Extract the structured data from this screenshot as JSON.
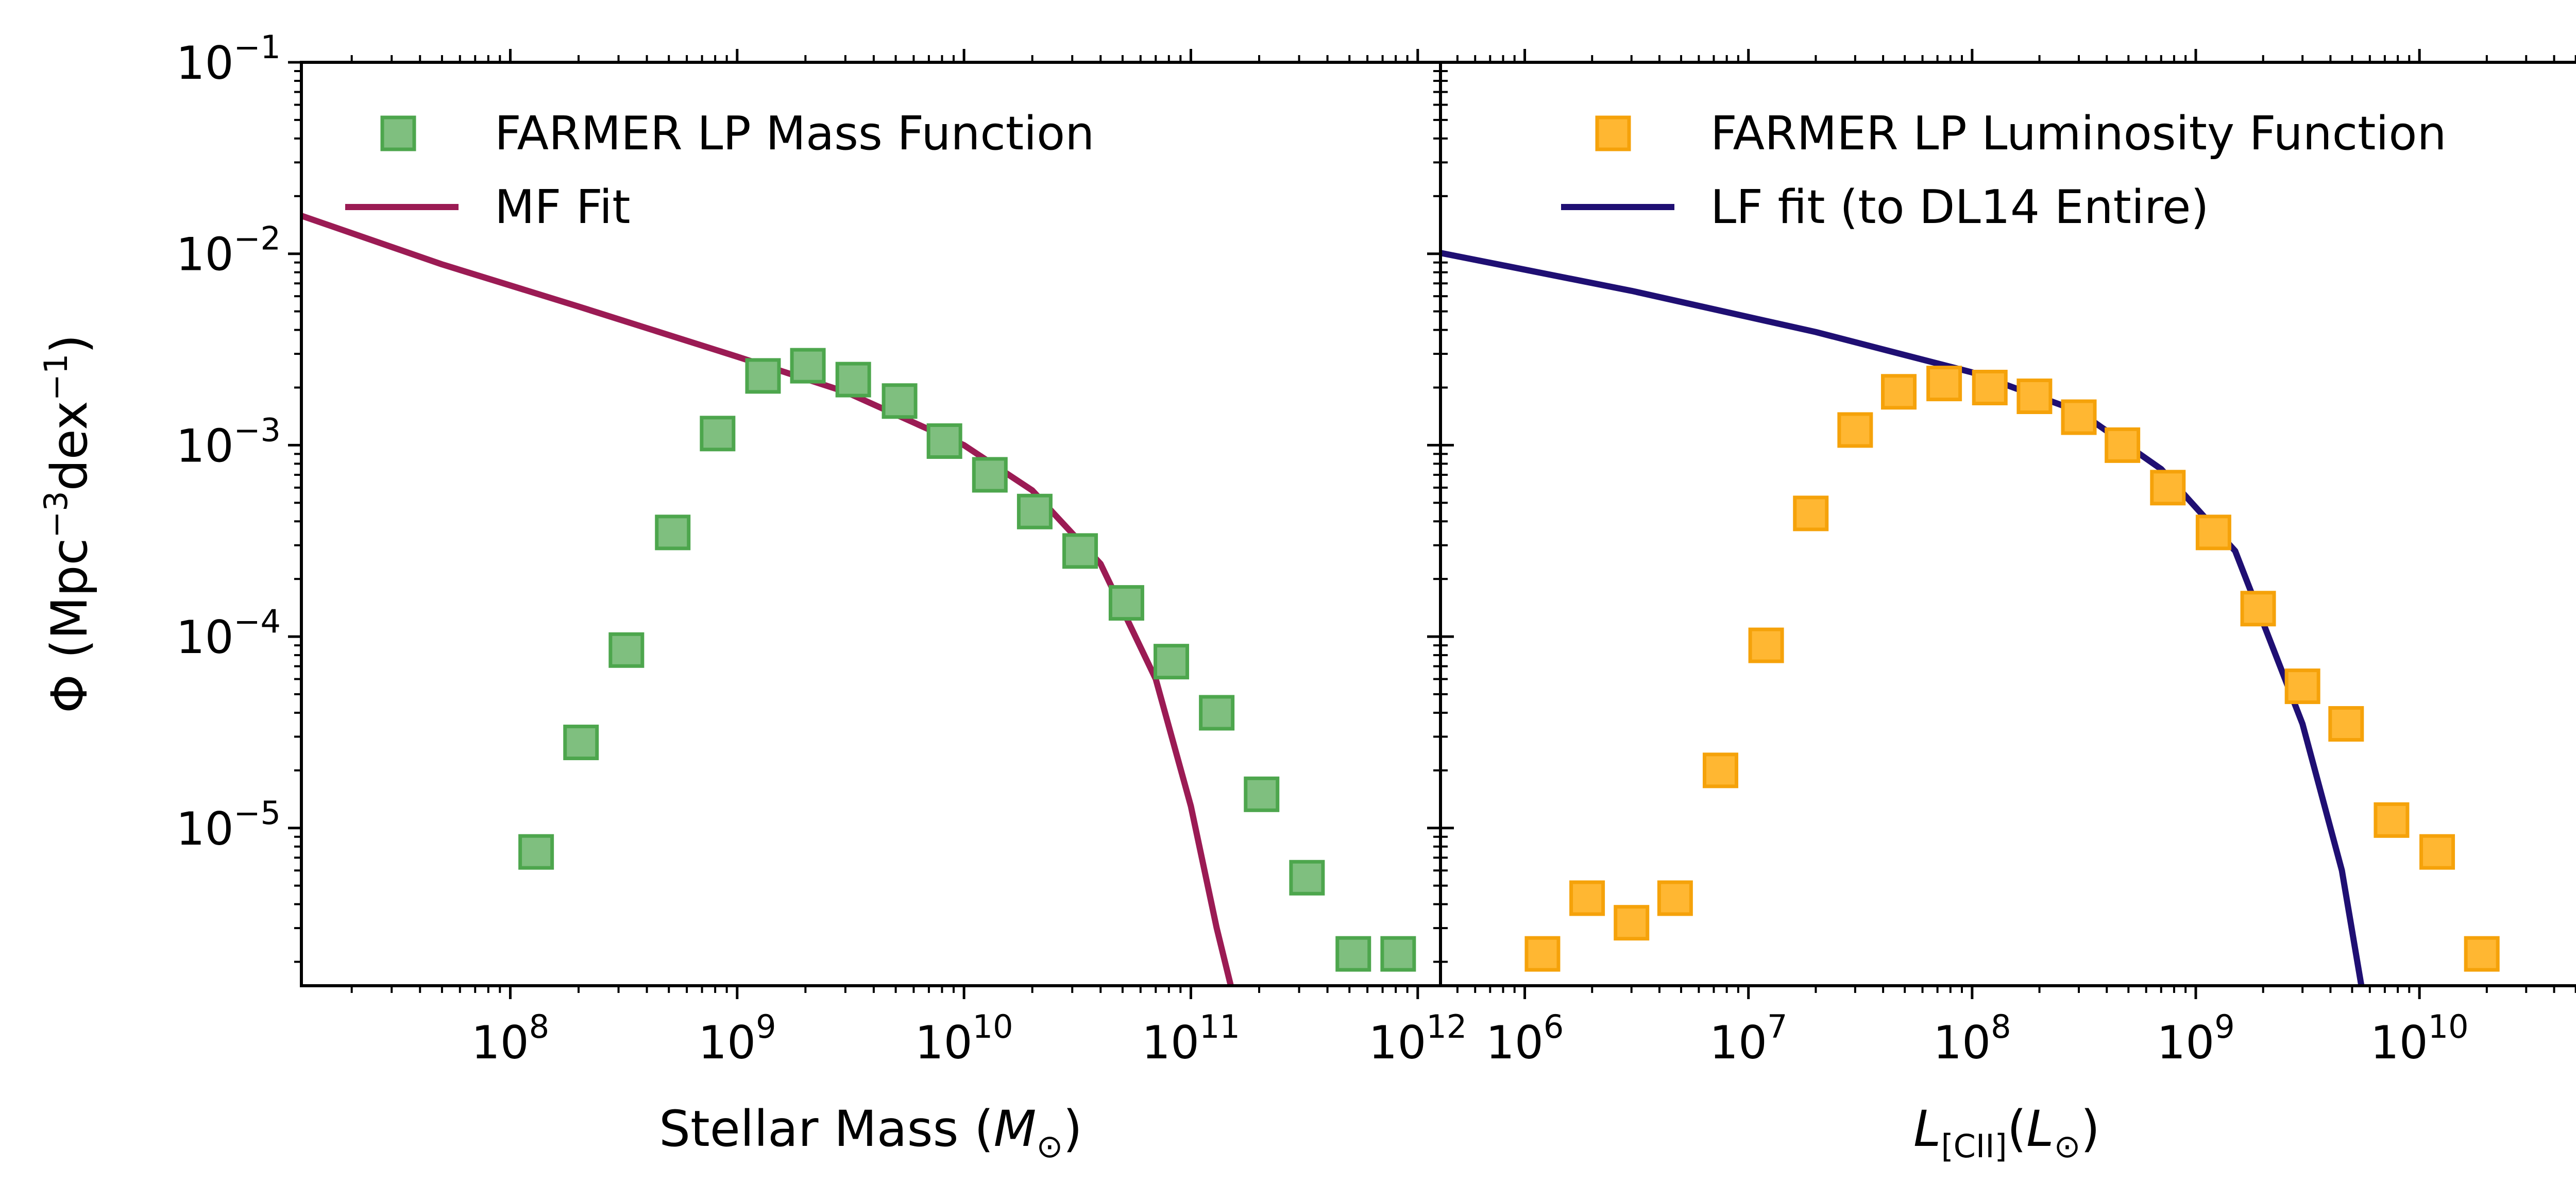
{
  "figure": {
    "ylabel": "Φ (Mpc⁻³dex⁻¹)",
    "ylabel_parts": {
      "prefix": "Φ (Mpc",
      "exp1": "−3",
      "mid": "dex",
      "exp2": "−1",
      "suffix": ")"
    },
    "ytick_base": "10",
    "ytick_exponents": [
      "−1",
      "−2",
      "−3",
      "−4",
      "−5"
    ]
  },
  "chart_data": [
    {
      "type": "scatter",
      "panel": "left",
      "xscale": "log",
      "yscale": "log",
      "xlim": [
        12000000,
        1260000000000
      ],
      "ylim": [
        1.5e-06,
        0.1
      ],
      "xlabel": "Stellar Mass (M⊙)",
      "xlabel_parts": {
        "prefix": "Stellar Mass (",
        "var": "M",
        "sub": "⊙",
        "suffix": ")"
      },
      "xtick_base": "10",
      "xtick_exponents": [
        "8",
        "9",
        "10",
        "11",
        "12"
      ],
      "legend_position": "upper-left",
      "colors": {
        "marker_fill": "#7fbf7f",
        "marker_edge": "#4da64d",
        "line": "#9b1b54"
      },
      "series": [
        {
          "name": "FARMER LP Mass Function",
          "kind": "markers",
          "x": [
            130000000,
            205000000,
            325000000,
            520000000,
            820000000,
            1300000000,
            2050000000,
            3250000000,
            5200000000,
            8200000000,
            13000000000,
            20500000000,
            32500000000,
            52000000000,
            82000000000,
            130000000000,
            205000000000,
            325000000000,
            520000000000,
            820000000000
          ],
          "y": [
            7.5e-06,
            2.8e-05,
            8.5e-05,
            0.00035,
            0.00115,
            0.0023,
            0.0026,
            0.0022,
            0.0017,
            0.00105,
            0.0007,
            0.00045,
            0.00028,
            0.00015,
            7.4e-05,
            4e-05,
            1.5e-05,
            5.5e-06,
            2.2e-06,
            2.2e-06
          ]
        },
        {
          "name": "MF Fit",
          "kind": "line",
          "x": [
            12000000,
            50000000,
            200000000,
            1000000000,
            3000000000,
            10000000000,
            20000000000,
            40000000000,
            70000000000,
            100000000000,
            130000000000,
            150000000000
          ],
          "y": [
            0.0158,
            0.0088,
            0.0053,
            0.0029,
            0.0019,
            0.001,
            0.00058,
            0.00024,
            6e-05,
            1.3e-05,
            3e-06,
            1.5e-06
          ]
        }
      ]
    },
    {
      "type": "scatter",
      "panel": "right",
      "xscale": "log",
      "yscale": "log",
      "xlim": [
        420000,
        52000000000
      ],
      "ylim": [
        1.5e-06,
        0.1
      ],
      "xlabel": "L[CII](L⊙)",
      "xlabel_parts": {
        "var": "L",
        "sub": "[CII]",
        "paren_open": "(",
        "var2": "L",
        "sub2": "⊙",
        "paren_close": ")"
      },
      "xtick_base": "10",
      "xtick_exponents": [
        "6",
        "7",
        "8",
        "9",
        "10"
      ],
      "legend_position": "upper-right",
      "colors": {
        "marker_fill": "#ffb732",
        "marker_edge": "#f5a20a",
        "line": "#1f0f73"
      },
      "series": [
        {
          "name": "FARMER LP Luminosity Function",
          "kind": "markers",
          "x": [
            1200000,
            1900000,
            3000000,
            4700000,
            7500000,
            12000000,
            19000000,
            30000000,
            47000000,
            75000000,
            120000000,
            190000000,
            300000000,
            470000000,
            750000000,
            1200000000,
            1900000000,
            3000000000,
            4700000000,
            7500000000,
            12000000000,
            19000000000
          ],
          "y": [
            2.2e-06,
            4.3e-06,
            3.2e-06,
            4.3e-06,
            2e-05,
            9e-05,
            0.00044,
            0.0012,
            0.0019,
            0.0021,
            0.002,
            0.0018,
            0.0014,
            0.001,
            0.0006,
            0.00035,
            0.00014,
            5.5e-05,
            3.5e-05,
            1.1e-05,
            7.5e-06,
            2.2e-06
          ]
        },
        {
          "name": "LF fit (to DL14 Entire)",
          "kind": "line",
          "x": [
            420000,
            3000000,
            20000000,
            100000000,
            300000000,
            700000000,
            1500000000,
            3000000000,
            4500000000,
            5500000000
          ],
          "y": [
            0.0101,
            0.0064,
            0.0039,
            0.0024,
            0.0015,
            0.00075,
            0.00028,
            3.5e-05,
            6e-06,
            1.5e-06
          ]
        }
      ]
    }
  ]
}
